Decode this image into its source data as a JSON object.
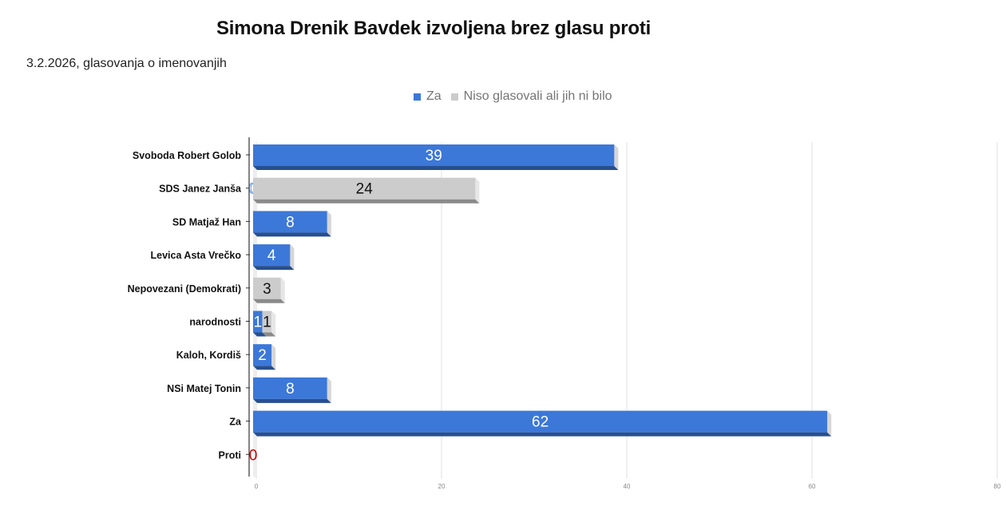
{
  "title": "Simona Drenik Bavdek izvoljena brez glasu proti",
  "subtitle": "3.2.2026, glasovanja o imenovanjih",
  "colors": {
    "za": "#3c78d8",
    "za_dark": "#274f8f",
    "za_side": "#d6d6d6",
    "absent": "#cccccc",
    "absent_dark": "#8a8a8a",
    "proti": "#cc0000"
  },
  "chart_data": {
    "type": "bar",
    "orientation": "horizontal",
    "stacked": true,
    "title": "Simona Drenik Bavdek izvoljena brez glasu proti",
    "subtitle": "3.2.2026, glasovanja o imenovanjih",
    "categories": [
      "Svoboda Robert Golob",
      "SDS Janez Janša",
      "SD Matjaž Han",
      "Levica Asta Vrečko",
      "Nepovezani (Demokrati)",
      "narodnosti",
      "Kaloh, Kordiš",
      "NSi Matej Tonin",
      "Za",
      "Proti"
    ],
    "series": [
      {
        "name": "Za",
        "values": [
          39,
          0,
          8,
          4,
          null,
          1,
          2,
          8,
          62,
          null
        ]
      },
      {
        "name": "Niso glasovali ali jih ni bilo",
        "values": [
          null,
          24,
          null,
          null,
          3,
          1,
          null,
          null,
          null,
          null
        ]
      },
      {
        "values": [
          null,
          null,
          null,
          null,
          null,
          null,
          null,
          null,
          null,
          0
        ]
      }
    ],
    "xlim": [
      0,
      80
    ],
    "xticks": [
      0,
      20,
      40,
      60,
      80
    ],
    "grid": true,
    "legend_position": "top"
  }
}
